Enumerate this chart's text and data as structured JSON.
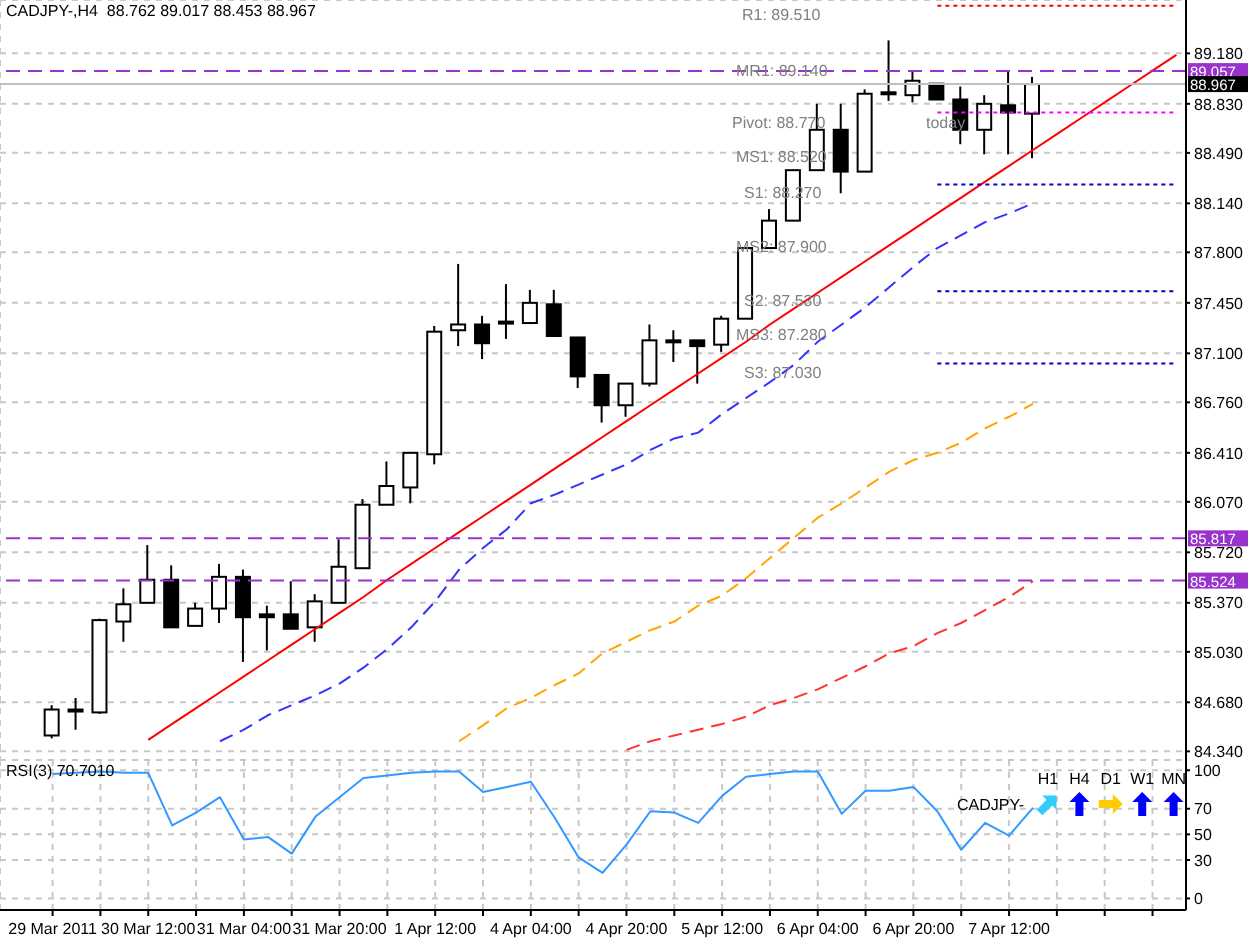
{
  "chart_data": [
    {
      "type": "candlestick",
      "title": "CADJPY-,H4  88.762 89.017 88.453 88.967",
      "categories": [
        null,
        null,
        null,
        null,
        null,
        null,
        null,
        null,
        null,
        null,
        null,
        null,
        null,
        null,
        null,
        null,
        null,
        null,
        null,
        null,
        null,
        null,
        null,
        null,
        null,
        null,
        null,
        null,
        null,
        null,
        null,
        null,
        null,
        null,
        null,
        null,
        null,
        null,
        null,
        null,
        null,
        null,
        null,
        null,
        null,
        null,
        null,
        null
      ],
      "ohlc": [
        [
          84.45,
          84.66,
          84.43,
          84.63
        ],
        [
          84.63,
          84.71,
          84.49,
          84.62
        ],
        [
          84.61,
          85.26,
          84.6,
          85.25
        ],
        [
          85.24,
          85.47,
          85.1,
          85.36
        ],
        [
          85.37,
          85.77,
          85.37,
          85.53
        ],
        [
          85.53,
          85.63,
          85.2,
          85.2
        ],
        [
          85.21,
          85.37,
          85.21,
          85.33
        ],
        [
          85.33,
          85.64,
          85.23,
          85.55
        ],
        [
          85.55,
          85.6,
          84.96,
          85.27
        ],
        [
          85.29,
          85.35,
          85.04,
          85.27
        ],
        [
          85.29,
          85.52,
          85.19,
          85.19
        ],
        [
          85.2,
          85.43,
          85.1,
          85.38
        ],
        [
          85.37,
          85.81,
          85.37,
          85.62
        ],
        [
          85.61,
          86.09,
          85.61,
          86.05
        ],
        [
          86.05,
          86.35,
          86.05,
          86.18
        ],
        [
          86.17,
          86.41,
          86.06,
          86.41
        ],
        [
          86.4,
          87.29,
          86.33,
          87.25
        ],
        [
          87.26,
          87.72,
          87.15,
          87.3
        ],
        [
          87.3,
          87.36,
          87.06,
          87.17
        ],
        [
          87.31,
          87.58,
          87.2,
          87.32
        ],
        [
          87.31,
          87.54,
          87.31,
          87.45
        ],
        [
          87.44,
          87.54,
          87.22,
          87.22
        ],
        [
          87.21,
          87.21,
          86.86,
          86.94
        ],
        [
          86.95,
          86.95,
          86.62,
          86.74
        ],
        [
          86.74,
          86.89,
          86.66,
          86.89
        ],
        [
          86.89,
          87.3,
          86.87,
          87.19
        ],
        [
          87.18,
          87.26,
          87.04,
          87.19
        ],
        [
          87.19,
          87.19,
          86.89,
          87.15
        ],
        [
          87.16,
          87.36,
          87.11,
          87.34
        ],
        [
          87.34,
          87.83,
          87.34,
          87.83
        ],
        [
          87.83,
          88.1,
          87.83,
          88.02
        ],
        [
          88.02,
          88.37,
          88.02,
          88.37
        ],
        [
          88.37,
          88.83,
          88.37,
          88.65
        ],
        [
          88.65,
          88.83,
          88.21,
          88.36
        ],
        [
          88.36,
          88.93,
          88.36,
          88.9
        ],
        [
          88.9,
          89.27,
          88.85,
          88.91
        ],
        [
          88.89,
          89.06,
          88.84,
          88.99
        ],
        [
          88.97,
          88.97,
          88.86,
          88.86
        ],
        [
          88.86,
          88.95,
          88.55,
          88.65
        ],
        [
          88.65,
          88.89,
          88.48,
          88.83
        ],
        [
          88.82,
          89.06,
          88.48,
          88.77
        ],
        [
          88.762,
          89.017,
          88.453,
          88.967
        ],
        null,
        null,
        null,
        null,
        null,
        null
      ],
      "series": [
        {
          "type": "line",
          "color": "#ff0000",
          "line_style": "solid",
          "values": [
            null,
            null,
            null,
            null,
            84.42,
            84.53,
            84.64,
            84.75,
            84.86,
            84.97,
            85.08,
            85.19,
            85.3,
            85.41,
            85.53,
            85.64,
            85.75,
            85.86,
            85.97,
            86.08,
            86.19,
            86.3,
            86.41,
            86.52,
            86.63,
            86.74,
            86.85,
            86.96,
            87.07,
            87.18,
            87.3,
            87.41,
            87.52,
            87.63,
            87.74,
            87.85,
            87.96,
            88.07,
            88.18,
            88.29,
            88.4,
            88.51,
            88.62,
            88.73,
            88.84,
            88.95,
            89.06,
            89.17
          ]
        },
        {
          "type": "line",
          "color": "#3333ff",
          "line_style": "dashed",
          "values": [
            null,
            null,
            null,
            null,
            null,
            null,
            null,
            84.41,
            84.49,
            84.59,
            84.66,
            84.73,
            84.81,
            84.92,
            85.05,
            85.2,
            85.38,
            85.6,
            85.75,
            85.88,
            86.06,
            86.12,
            86.19,
            86.26,
            86.33,
            86.43,
            86.51,
            86.55,
            86.68,
            86.79,
            86.9,
            87.02,
            87.18,
            87.3,
            87.42,
            87.56,
            87.7,
            87.83,
            87.92,
            88.01,
            88.07,
            88.14,
            null,
            null,
            null,
            null,
            null,
            null
          ]
        },
        {
          "type": "line",
          "color": "#ffa500",
          "line_style": "dashed",
          "values": [
            null,
            null,
            null,
            null,
            null,
            null,
            null,
            null,
            null,
            null,
            null,
            null,
            null,
            null,
            null,
            null,
            null,
            84.41,
            84.52,
            84.64,
            84.71,
            84.8,
            84.88,
            85.02,
            85.1,
            85.18,
            85.24,
            85.35,
            85.42,
            85.54,
            85.68,
            85.82,
            85.96,
            86.06,
            86.17,
            86.28,
            86.36,
            86.41,
            86.48,
            86.58,
            86.66,
            86.75,
            null,
            null,
            null,
            null,
            null,
            null
          ]
        },
        {
          "type": "line",
          "color": "#ff3333",
          "line_style": "dashed",
          "values": [
            null,
            null,
            null,
            null,
            null,
            null,
            null,
            null,
            null,
            null,
            null,
            null,
            null,
            null,
            null,
            null,
            null,
            null,
            null,
            null,
            null,
            null,
            null,
            null,
            84.35,
            84.41,
            84.45,
            84.49,
            84.53,
            84.58,
            84.66,
            84.71,
            84.77,
            84.85,
            84.93,
            85.02,
            85.07,
            85.16,
            85.23,
            85.32,
            85.41,
            85.52,
            null,
            null,
            null,
            null,
            null,
            null
          ]
        },
        {
          "type": "line",
          "color": "#ff0000",
          "line_style": "dotted",
          "values": [
            null,
            null,
            null,
            null,
            null,
            null,
            null,
            null,
            null,
            null,
            null,
            null,
            null,
            null,
            null,
            null,
            null,
            null,
            null,
            null,
            null,
            null,
            null,
            null,
            null,
            null,
            null,
            null,
            null,
            null,
            null,
            null,
            null,
            null,
            null,
            null,
            null,
            89.51,
            89.51,
            89.51,
            89.51,
            89.51,
            89.51,
            89.51,
            89.51,
            89.51,
            89.51,
            89.51
          ]
        },
        {
          "type": "line",
          "color": "#ff00ff",
          "line_style": "dotted",
          "values": [
            null,
            null,
            null,
            null,
            null,
            null,
            null,
            null,
            null,
            null,
            null,
            null,
            null,
            null,
            null,
            null,
            null,
            null,
            null,
            null,
            null,
            null,
            null,
            null,
            null,
            null,
            null,
            null,
            null,
            null,
            null,
            null,
            null,
            null,
            null,
            null,
            null,
            88.77,
            88.77,
            88.77,
            88.77,
            88.77,
            88.77,
            88.77,
            88.77,
            88.77,
            88.77,
            88.77
          ]
        },
        {
          "type": "line",
          "color": "#0000cc",
          "line_style": "dotted",
          "values": [
            null,
            null,
            null,
            null,
            null,
            null,
            null,
            null,
            null,
            null,
            null,
            null,
            null,
            null,
            null,
            null,
            null,
            null,
            null,
            null,
            null,
            null,
            null,
            null,
            null,
            null,
            null,
            null,
            null,
            null,
            null,
            null,
            null,
            null,
            null,
            null,
            null,
            88.27,
            88.27,
            88.27,
            88.27,
            88.27,
            88.27,
            88.27,
            88.27,
            88.27,
            88.27,
            88.27
          ]
        },
        {
          "type": "line",
          "color": "#0000cc",
          "line_style": "dotted",
          "values": [
            null,
            null,
            null,
            null,
            null,
            null,
            null,
            null,
            null,
            null,
            null,
            null,
            null,
            null,
            null,
            null,
            null,
            null,
            null,
            null,
            null,
            null,
            null,
            null,
            null,
            null,
            null,
            null,
            null,
            null,
            null,
            null,
            null,
            null,
            null,
            null,
            null,
            87.53,
            87.53,
            87.53,
            87.53,
            87.53,
            87.53,
            87.53,
            87.53,
            87.53,
            87.53,
            87.53
          ]
        },
        {
          "type": "line",
          "color": "#0000cc",
          "line_style": "dotted",
          "values": [
            null,
            null,
            null,
            null,
            null,
            null,
            null,
            null,
            null,
            null,
            null,
            null,
            null,
            null,
            null,
            null,
            null,
            null,
            null,
            null,
            null,
            null,
            null,
            null,
            null,
            null,
            null,
            null,
            null,
            null,
            null,
            null,
            null,
            null,
            null,
            null,
            null,
            87.03,
            87.03,
            87.03,
            87.03,
            87.03,
            87.03,
            87.03,
            87.03,
            87.03,
            87.03,
            87.03
          ]
        }
      ],
      "ylim": [
        84.28,
        89.55
      ],
      "yticks": [
        {
          "value": 84.34,
          "label": "84.340"
        },
        {
          "value": 84.68,
          "label": "84.680"
        },
        {
          "value": 85.03,
          "label": "85.030"
        },
        {
          "value": 85.37,
          "label": "85.370"
        },
        {
          "value": 85.72,
          "label": "85.720"
        },
        {
          "value": 86.07,
          "label": "86.070"
        },
        {
          "value": 86.41,
          "label": "86.410"
        },
        {
          "value": 86.76,
          "label": "86.760"
        },
        {
          "value": 87.1,
          "label": "87.100"
        },
        {
          "value": 87.45,
          "label": "87.450"
        },
        {
          "value": 87.8,
          "label": "87.800"
        },
        {
          "value": 88.14,
          "label": "88.140"
        },
        {
          "value": 88.49,
          "label": "88.490"
        },
        {
          "value": 88.83,
          "label": "88.830"
        },
        {
          "value": 89.18,
          "label": "89.180"
        }
      ],
      "grid": true,
      "tick_labels": "y",
      "ref_lines": [
        {
          "axis": "y",
          "value": 89.057,
          "label": "89.057",
          "color": "#9933cc",
          "line_style": "dashed"
        },
        {
          "axis": "y",
          "value": 88.967,
          "label": "88.967",
          "color": "#c0c0c0",
          "line_style": "solid"
        },
        {
          "axis": "y",
          "value": 85.817,
          "label": "85.817",
          "color": "#9933cc",
          "line_style": "dashed"
        },
        {
          "axis": "y",
          "value": 85.524,
          "label": "85.524",
          "color": "#9933cc",
          "line_style": "dashed"
        }
      ],
      "annotations": [
        "R1: 89.510",
        "MR1: 89.140",
        "Pivot: 88.770",
        "MS1: 88.520",
        "S1: 88.270",
        "MS2: 87.900",
        "S2: 87.530",
        "MS3: 87.280",
        "S3: 87.030",
        "today"
      ]
    },
    {
      "type": "line",
      "title": "RSI(3) 70.7010",
      "categories": [
        "29 Mar 2011",
        null,
        null,
        null,
        "30 Mar 12:00",
        null,
        null,
        null,
        "31 Mar 04:00",
        null,
        null,
        null,
        "31 Mar 20:00",
        null,
        null,
        null,
        "1 Apr 12:00",
        null,
        null,
        null,
        "4 Apr 04:00",
        null,
        null,
        null,
        "4 Apr 20:00",
        null,
        null,
        null,
        "5 Apr 12:00",
        null,
        null,
        null,
        "6 Apr 04:00",
        null,
        null,
        null,
        "6 Apr 20:00",
        null,
        null,
        null,
        "7 Apr 12:00",
        null,
        null,
        null,
        null,
        null,
        null,
        null
      ],
      "series": [
        {
          "color": "#3399ff",
          "values": [
            97,
            98,
            99,
            98,
            98,
            57,
            67,
            79,
            46,
            48,
            35,
            64,
            79,
            94,
            96,
            98,
            99,
            99,
            83,
            87,
            91,
            63,
            32,
            20,
            42,
            68,
            67,
            59,
            80,
            95,
            97,
            99,
            99,
            66,
            84,
            84,
            87,
            68,
            38,
            59,
            49,
            70.7,
            null,
            null,
            null,
            null,
            null,
            null
          ]
        }
      ],
      "ylim": [
        -9,
        108
      ],
      "yticks": [
        0,
        30,
        50,
        70,
        100
      ],
      "grid": true,
      "annotations": [
        "CADJPY-",
        "H1",
        "H4",
        "D1",
        "W1",
        "MN"
      ]
    }
  ]
}
